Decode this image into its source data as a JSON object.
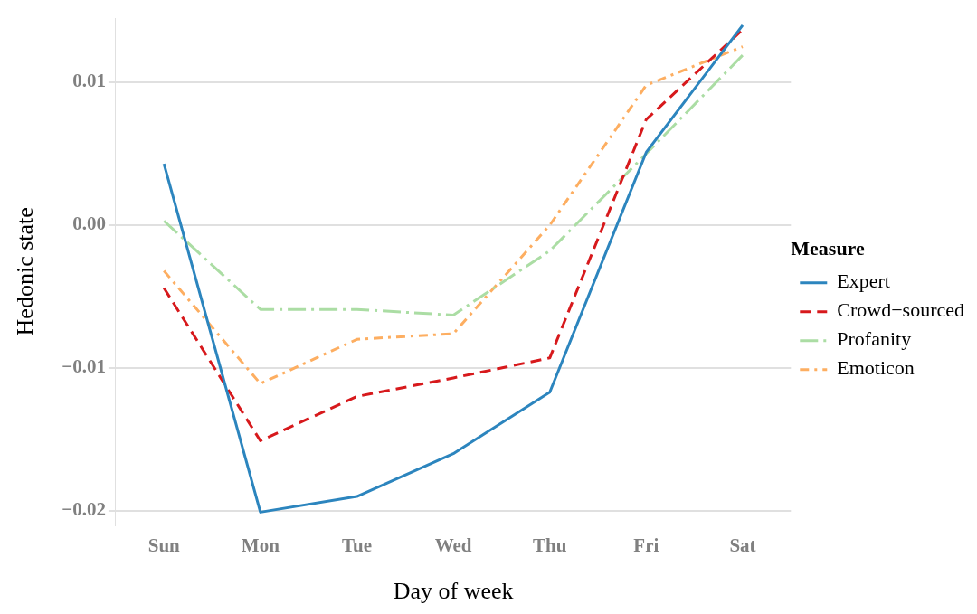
{
  "chart_data": {
    "type": "line",
    "xlabel": "Day of week",
    "ylabel": "Hedonic state",
    "legend_title": "Measure",
    "legend": "right",
    "grid": "y",
    "marker": "none",
    "categories": [
      "Sun",
      "Mon",
      "Tue",
      "Wed",
      "Thu",
      "Fri",
      "Sat"
    ],
    "ylim": [
      -0.021,
      0.0145
    ],
    "yticks": [
      {
        "value": -0.02,
        "label": "−0.02"
      },
      {
        "value": -0.01,
        "label": "−0.01"
      },
      {
        "value": 0,
        "label": "0.00"
      },
      {
        "value": 0.01,
        "label": "0.01"
      }
    ],
    "series": [
      {
        "name": "Expert",
        "color": "#2c85be",
        "line_style": "solid",
        "values": [
          0.0043,
          -0.0201,
          -0.019,
          -0.016,
          -0.0117,
          0.0051,
          0.014
        ]
      },
      {
        "name": "Crowd−sourced",
        "color": "#d7191c",
        "line_style": "dashed",
        "values": [
          -0.0044,
          -0.0151,
          -0.012,
          -0.0107,
          -0.0093,
          0.0074,
          0.0137
        ]
      },
      {
        "name": "Profanity",
        "color": "#abdda4",
        "line_style": "dashed",
        "values": [
          0.0003,
          -0.0059,
          -0.0059,
          -0.0063,
          -0.0018,
          0.005,
          0.0119
        ]
      },
      {
        "name": "Emoticon",
        "color": "#fdae61",
        "line_style": "dashed",
        "values": [
          -0.0032,
          -0.0111,
          -0.008,
          -0.0076,
          0.0,
          0.0098,
          0.0125
        ]
      }
    ]
  }
}
